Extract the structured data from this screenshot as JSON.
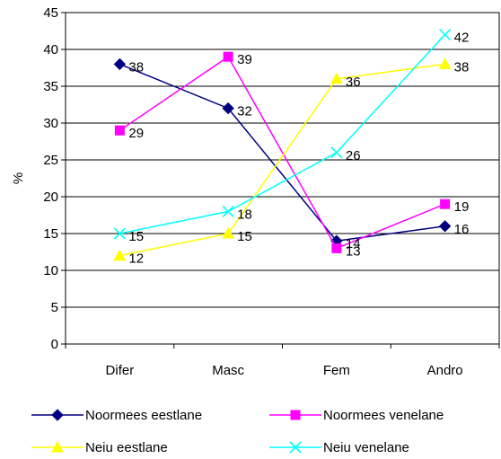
{
  "chart_data": {
    "type": "line",
    "categories": [
      "Difer",
      "Masc",
      "Fem",
      "Andro"
    ],
    "ylabel": "%",
    "xlabel": "",
    "ylim": [
      0,
      45
    ],
    "ytick_step": 5,
    "grid": "horizontal",
    "legend_position": "bottom",
    "series": [
      {
        "name": "Noormees eestlane",
        "values": [
          38,
          32,
          14,
          16
        ],
        "color": "#000080",
        "marker": "diamond"
      },
      {
        "name": "Noormees venelane",
        "values": [
          29,
          39,
          13,
          19
        ],
        "color": "#FF00FF",
        "marker": "square"
      },
      {
        "name": "Neiu eestlane",
        "values": [
          12,
          15,
          36,
          38
        ],
        "color": "#FFFF00",
        "marker": "triangle"
      },
      {
        "name": "Neiu venelane",
        "values": [
          15,
          18,
          26,
          42
        ],
        "color": "#00FFFF",
        "marker": "x"
      }
    ]
  }
}
